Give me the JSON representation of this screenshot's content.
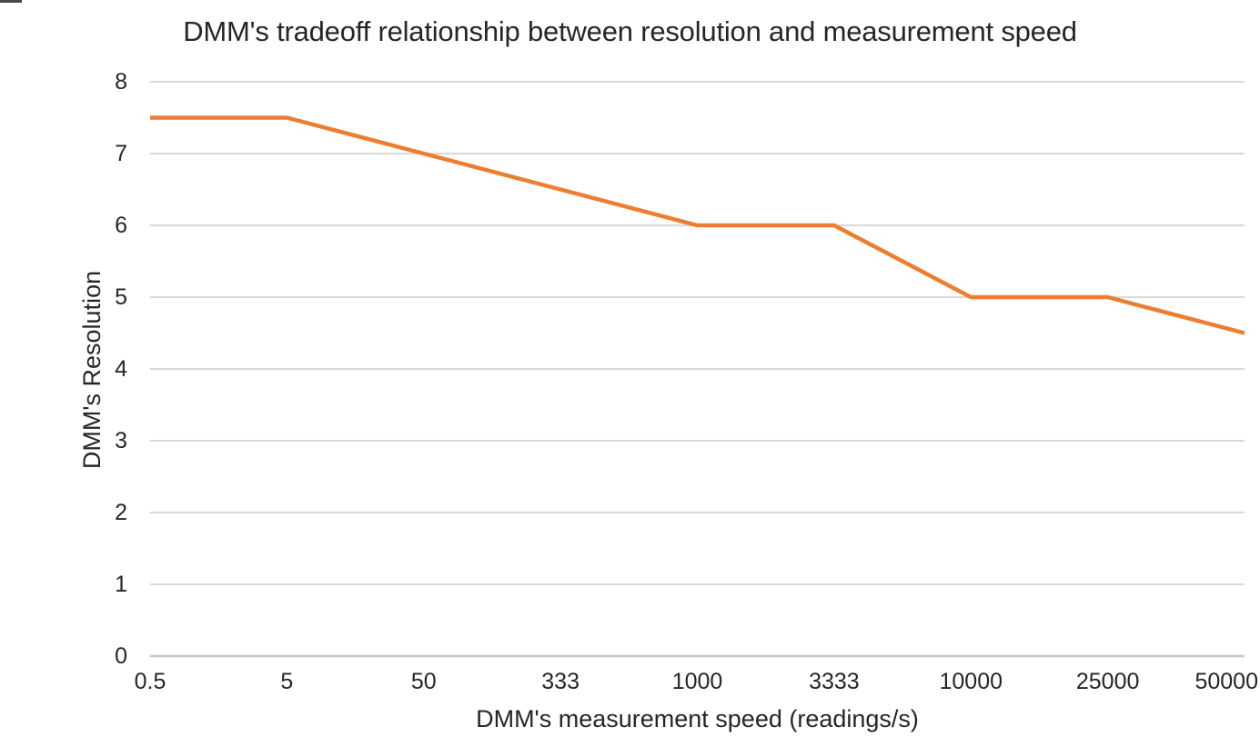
{
  "chart_data": {
    "type": "line",
    "title": "DMM's tradeoff relationship between resolution and measurement speed",
    "xlabel": "DMM's measurement speed (readings/s)",
    "ylabel": "DMM's Resolution",
    "categories": [
      "0.5",
      "5",
      "50",
      "333",
      "1000",
      "3333",
      "10000",
      "25000",
      "50000"
    ],
    "values": [
      7.5,
      7.5,
      7,
      6.5,
      6,
      6,
      5,
      5,
      4.5
    ],
    "ylim": [
      0,
      8
    ],
    "yticks": [
      "0",
      "1",
      "2",
      "3",
      "4",
      "5",
      "6",
      "7",
      "8"
    ],
    "grid": "horizontal",
    "legend_position": "none"
  },
  "colors": {
    "line": "#ED7D31",
    "gridline": "#D9D9D9",
    "axis_line": "#C6C6C6",
    "text": "#262626",
    "background": "#FFFFFF",
    "artifact": "#474747"
  }
}
